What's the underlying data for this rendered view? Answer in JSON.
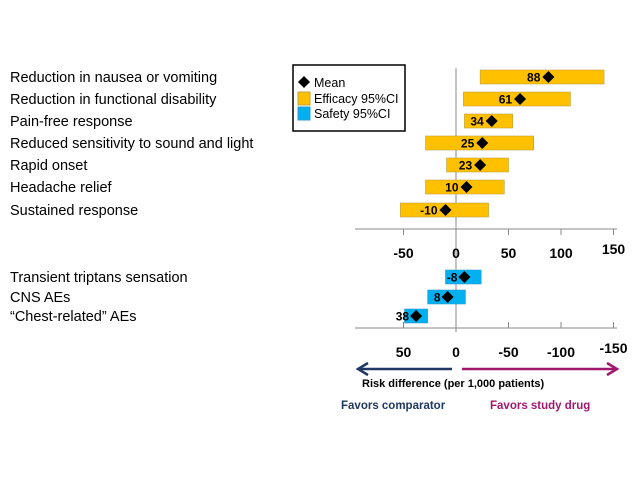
{
  "chart_data": [
    {
      "type": "bar",
      "subtype": "forest",
      "title": "Efficacy",
      "categories": [
        "Reduction in nausea or vomiting",
        "Reduction in functional disability",
        "Pain-free response",
        "Reduced sensitivity to sound and light",
        "Rapid onset",
        "Headache relief",
        "Sustained response"
      ],
      "means": [
        88,
        61,
        34,
        25,
        23,
        10,
        -10
      ],
      "ci_lower": [
        23,
        7,
        8,
        -29,
        -9,
        -29,
        -53
      ],
      "ci_upper": [
        141,
        109,
        54,
        74,
        50,
        46,
        31
      ],
      "xticks": [
        -50,
        0,
        50,
        100,
        150
      ],
      "xlim": [
        -95,
        150
      ],
      "color": "#FFC000"
    },
    {
      "type": "bar",
      "subtype": "forest",
      "title": "Safety",
      "reversed_axis": true,
      "categories": [
        "Transient triptans sensation",
        "CNS AEs",
        "“Chest-related” AEs"
      ],
      "means": [
        -8,
        8,
        38
      ],
      "ci_lower": [
        -24,
        -9,
        27
      ],
      "ci_upper": [
        10,
        27,
        49
      ],
      "xticks": [
        50,
        0,
        -50,
        -100,
        -150
      ],
      "color": "#00B0F0"
    }
  ],
  "legend": {
    "mean": "Mean",
    "efficacy": "Efficacy 95%CI",
    "safety": "Safety 95%CI"
  },
  "xlabel": "Risk difference (per 1,000 patients)",
  "favors_left": "Favors comparator",
  "favors_right": "Favors study drug",
  "colors": {
    "left": "#1F3864",
    "right": "#A0186E"
  }
}
